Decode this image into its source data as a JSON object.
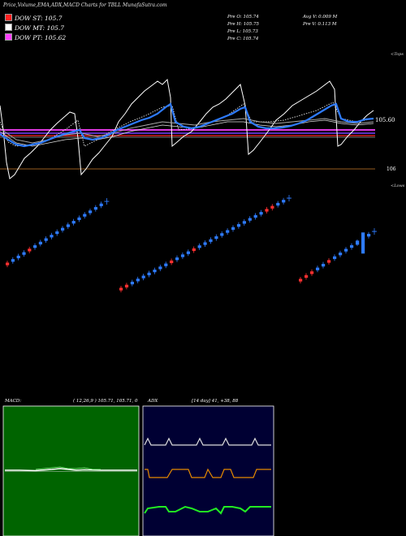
{
  "header": {
    "title": "Price,Volume,EMA,ADX,MACD Charts for TBLL  MunafaSutra.com"
  },
  "legend": [
    {
      "label": "DOW ST: 105.7",
      "color": "#ff2020"
    },
    {
      "label": "DOW MT: 105.7",
      "color": "#ffffff"
    },
    {
      "label": "DOW PT: 105.62",
      "color": "#ff40ff"
    }
  ],
  "stats": {
    "open": "Pre   O: 105.74",
    "high": "Pre   H: 105.75",
    "low": "Pre   L: 105.73",
    "close": "Pre   C: 105.74",
    "avg_volume": "Avg V: 0.009 M",
    "prev_volume": "Pre   V: 0.113 M"
  },
  "price_axis": {
    "top_label": "<Tops",
    "bottom_label": "<Lows",
    "current_price": "105.60",
    "level_label": "106"
  },
  "macd_panel": {
    "label": "MACD:",
    "values": "( 12,26,9 ) 105.71, 105.71, 0"
  },
  "adx_panel": {
    "label": "ADX",
    "values": "[14  day] 41,  +38,  88"
  },
  "chart_data": {
    "type": "line",
    "title": "Price,Volume,EMA,ADX,MACD Charts for TBLL  MunafaSutra.com",
    "xlabel": "",
    "ylabel": "",
    "grid": false,
    "legend_position": "top-left",
    "series": [
      {
        "name": "DOW ST",
        "values": [
          105.7
        ]
      },
      {
        "name": "DOW MT",
        "values": [
          105.7
        ]
      },
      {
        "name": "DOW PT",
        "values": [
          105.62
        ]
      }
    ],
    "candles": {
      "colors": {
        "up": "#2e7bff",
        "down": "#ff3030"
      },
      "groups": [
        {
          "start": 7,
          "count": 19
        },
        {
          "start": 147,
          "count": 31
        },
        {
          "start": 368,
          "count": 14
        }
      ]
    },
    "macd": {
      "params": "12,26,9",
      "macd": 105.71,
      "signal": 105.71,
      "histogram": 0
    },
    "adx": {
      "period": 14,
      "adx": 41,
      "plus_di": 38,
      "minus_di": 88
    }
  }
}
